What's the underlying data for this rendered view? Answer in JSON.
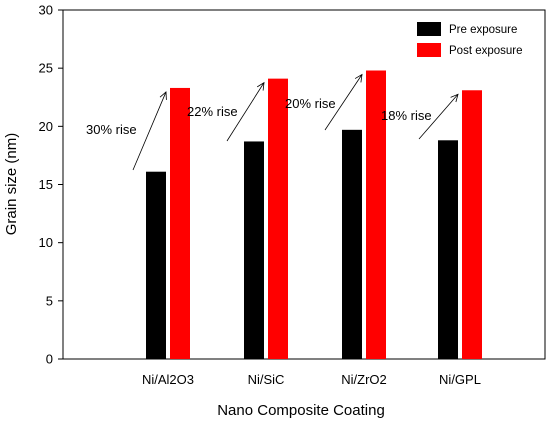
{
  "chart_data": {
    "type": "bar",
    "title": "",
    "xlabel": "Nano Composite Coating",
    "ylabel": "Grain size (nm)",
    "ylim": [
      0,
      30
    ],
    "yticks": [
      0,
      5,
      10,
      15,
      20,
      25,
      30
    ],
    "categories": [
      "Ni/Al2O3",
      "Ni/SiC",
      "Ni/ZrO2",
      "Ni/GPL"
    ],
    "series": [
      {
        "name": "Pre exposure",
        "values": [
          16.1,
          18.7,
          19.7,
          18.8
        ],
        "color": "#000000"
      },
      {
        "name": "Post exposure",
        "values": [
          23.3,
          24.1,
          24.8,
          23.1
        ],
        "color": "#ff0000"
      }
    ],
    "annotations": [
      "30% rise",
      "22% rise",
      "20% rise",
      "18% rise"
    ],
    "legend_position": "top-right",
    "grid": false
  }
}
